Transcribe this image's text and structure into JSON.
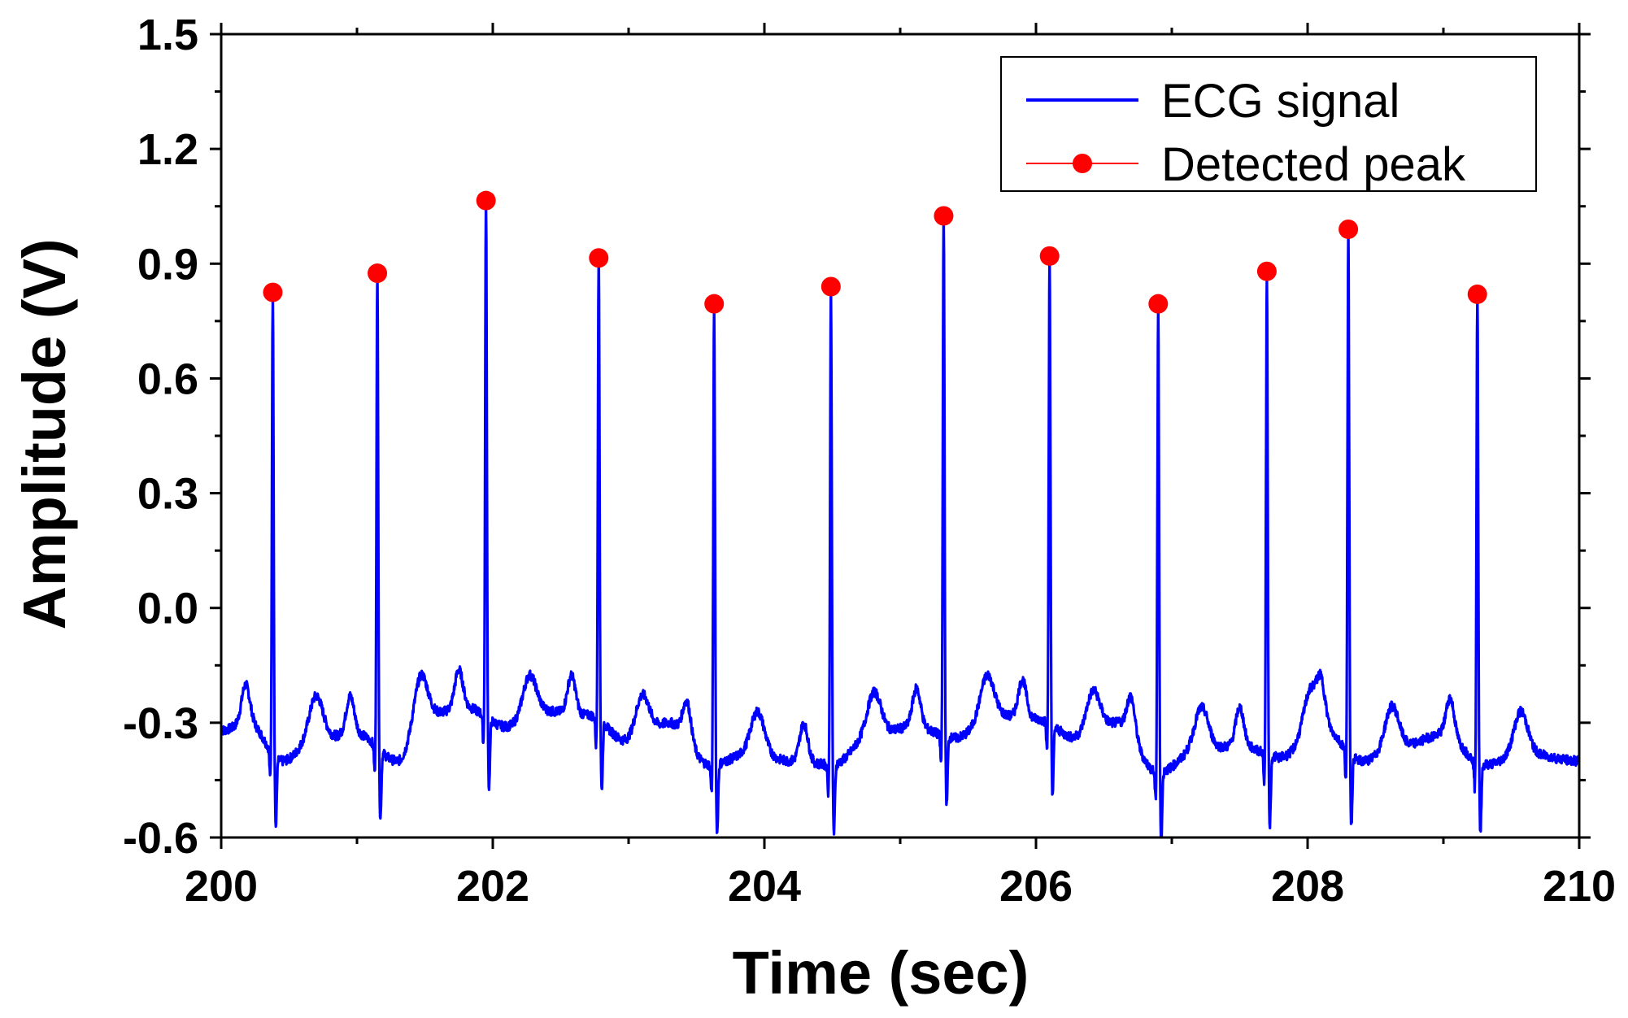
{
  "chart_data": {
    "type": "line",
    "title": "",
    "xlabel": "Time (sec)",
    "ylabel": "Amplitude (V)",
    "xlim": [
      200,
      210
    ],
    "ylim": [
      -0.6,
      1.5
    ],
    "xticks": [
      200,
      202,
      204,
      206,
      208,
      210
    ],
    "xtick_labels": [
      "200",
      "202",
      "204",
      "206",
      "208",
      "210"
    ],
    "yticks": [
      -0.6,
      -0.3,
      0.0,
      0.3,
      0.6,
      0.9,
      1.2,
      1.5
    ],
    "ytick_labels": [
      "-0.6",
      "-0.3",
      "0.0",
      "0.3",
      "0.6",
      "0.9",
      "1.2",
      "1.5"
    ],
    "grid": false,
    "legend": {
      "position": "top-right",
      "entries": [
        "ECG signal",
        "Detected peak"
      ]
    },
    "series": [
      {
        "name": "ECG signal",
        "type": "line",
        "color": "#0000ff",
        "baseline_keypoints": {
          "x": [
            200.0,
            200.2,
            200.45,
            200.7,
            201.0,
            201.3,
            201.5,
            201.8,
            202.1,
            202.4,
            202.7,
            203.0,
            203.3,
            203.6,
            203.9,
            204.2,
            204.5,
            204.8,
            205.1,
            205.4,
            205.7,
            206.0,
            206.3,
            206.6,
            206.9,
            207.2,
            207.5,
            207.8,
            208.1,
            208.4,
            208.7,
            209.0,
            209.3,
            209.6,
            210.0
          ],
          "y": [
            -0.32,
            -0.3,
            -0.4,
            -0.34,
            -0.33,
            -0.4,
            -0.28,
            -0.26,
            -0.31,
            -0.27,
            -0.28,
            -0.35,
            -0.3,
            -0.41,
            -0.38,
            -0.4,
            -0.41,
            -0.33,
            -0.31,
            -0.34,
            -0.28,
            -0.29,
            -0.34,
            -0.3,
            -0.43,
            -0.37,
            -0.36,
            -0.39,
            -0.31,
            -0.4,
            -0.36,
            -0.33,
            -0.41,
            -0.38,
            -0.4
          ]
        }
      },
      {
        "name": "Detected peak",
        "type": "scatter",
        "color": "#ff0000",
        "x": [
          200.38,
          201.15,
          201.95,
          202.78,
          203.63,
          204.49,
          205.32,
          206.1,
          206.9,
          207.7,
          208.3,
          209.25
        ],
        "y": [
          0.825,
          0.875,
          1.065,
          0.915,
          0.795,
          0.84,
          1.025,
          0.92,
          0.795,
          0.88,
          0.99,
          0.82
        ]
      }
    ]
  }
}
